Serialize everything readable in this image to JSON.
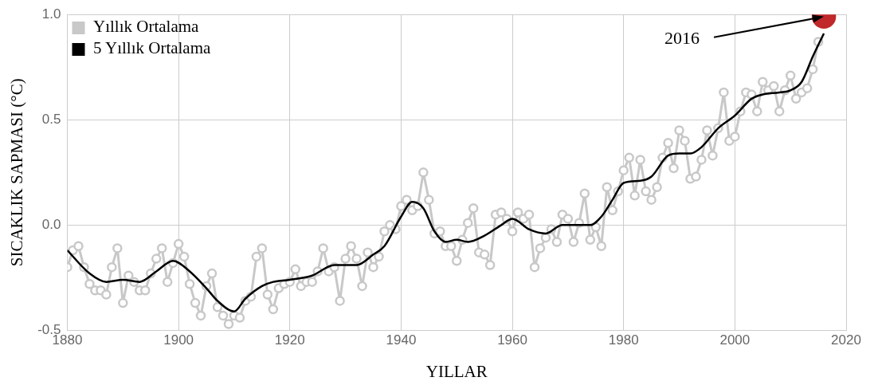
{
  "chart_data": {
    "type": "line",
    "xlabel": "YILLAR",
    "ylabel": "SICAKLIK SAPMASI (°C)",
    "xlim": [
      1880,
      2020
    ],
    "xticks": [
      1880,
      1900,
      1920,
      1940,
      1960,
      1980,
      2000,
      2020
    ],
    "ylim": [
      -0.5,
      1.0
    ],
    "yticks": [
      {
        "value": -0.5,
        "label": "-0.5"
      },
      {
        "value": 0,
        "label": "0.0"
      },
      {
        "value": 0.5,
        "label": "0.5"
      },
      {
        "value": 1,
        "label": "1.0"
      }
    ],
    "grid": true,
    "legend": "top left",
    "line_style": "solid",
    "annotations": [
      {
        "text": "2016",
        "x": 2016,
        "y": 0.99
      }
    ],
    "series": [
      {
        "name": "Yıllık Ortalama",
        "color": "#c8c8c8",
        "marker": "circle",
        "x": [
          1880,
          1881,
          1882,
          1883,
          1884,
          1885,
          1886,
          1887,
          1888,
          1889,
          1890,
          1891,
          1892,
          1893,
          1894,
          1895,
          1896,
          1897,
          1898,
          1899,
          1900,
          1901,
          1902,
          1903,
          1904,
          1905,
          1906,
          1907,
          1908,
          1909,
          1910,
          1911,
          1912,
          1913,
          1914,
          1915,
          1916,
          1917,
          1918,
          1919,
          1920,
          1921,
          1922,
          1923,
          1924,
          1925,
          1926,
          1927,
          1928,
          1929,
          1930,
          1931,
          1932,
          1933,
          1934,
          1935,
          1936,
          1937,
          1938,
          1939,
          1940,
          1941,
          1942,
          1943,
          1944,
          1945,
          1946,
          1947,
          1948,
          1949,
          1950,
          1951,
          1952,
          1953,
          1954,
          1955,
          1956,
          1957,
          1958,
          1959,
          1960,
          1961,
          1962,
          1963,
          1964,
          1965,
          1966,
          1967,
          1968,
          1969,
          1970,
          1971,
          1972,
          1973,
          1974,
          1975,
          1976,
          1977,
          1978,
          1979,
          1980,
          1981,
          1982,
          1983,
          1984,
          1985,
          1986,
          1987,
          1988,
          1989,
          1990,
          1991,
          1992,
          1993,
          1994,
          1995,
          1996,
          1997,
          1998,
          1999,
          2000,
          2001,
          2002,
          2003,
          2004,
          2005,
          2006,
          2007,
          2008,
          2009,
          2010,
          2011,
          2012,
          2013,
          2014,
          2015
        ],
        "values": [
          -0.2,
          -0.12,
          -0.1,
          -0.2,
          -0.28,
          -0.31,
          -0.31,
          -0.33,
          -0.2,
          -0.11,
          -0.37,
          -0.24,
          -0.27,
          -0.31,
          -0.31,
          -0.23,
          -0.16,
          -0.11,
          -0.27,
          -0.18,
          -0.09,
          -0.15,
          -0.28,
          -0.37,
          -0.43,
          -0.29,
          -0.23,
          -0.39,
          -0.43,
          -0.47,
          -0.43,
          -0.44,
          -0.36,
          -0.34,
          -0.15,
          -0.11,
          -0.33,
          -0.4,
          -0.3,
          -0.28,
          -0.27,
          -0.21,
          -0.29,
          -0.27,
          -0.27,
          -0.22,
          -0.11,
          -0.22,
          -0.2,
          -0.36,
          -0.16,
          -0.1,
          -0.16,
          -0.29,
          -0.13,
          -0.2,
          -0.15,
          -0.03,
          0.0,
          -0.02,
          0.09,
          0.12,
          0.07,
          0.09,
          0.25,
          0.12,
          -0.04,
          -0.03,
          -0.1,
          -0.1,
          -0.17,
          -0.07,
          0.01,
          0.08,
          -0.13,
          -0.14,
          -0.19,
          0.05,
          0.06,
          0.03,
          -0.03,
          0.06,
          0.03,
          0.05,
          -0.2,
          -0.11,
          -0.06,
          -0.02,
          -0.08,
          0.05,
          0.03,
          -0.08,
          0.01,
          0.15,
          -0.07,
          -0.01,
          -0.1,
          0.18,
          0.07,
          0.16,
          0.26,
          0.32,
          0.14,
          0.31,
          0.16,
          0.12,
          0.18,
          0.32,
          0.39,
          0.27,
          0.45,
          0.4,
          0.22,
          0.23,
          0.31,
          0.45,
          0.33,
          0.46,
          0.63,
          0.4,
          0.42,
          0.54,
          0.63,
          0.62,
          0.54,
          0.68,
          0.64,
          0.66,
          0.54,
          0.64,
          0.71,
          0.6,
          0.63,
          0.65,
          0.74,
          0.87
        ]
      },
      {
        "name": "5 Yıllık Ortalama",
        "color": "#000000",
        "marker": "none",
        "x": [
          1880,
          1884,
          1887,
          1890,
          1893,
          1896,
          1899,
          1902,
          1905,
          1907,
          1910,
          1912,
          1915,
          1917,
          1920,
          1924,
          1928,
          1932,
          1935,
          1937,
          1940,
          1942,
          1944,
          1946,
          1948,
          1950,
          1952,
          1955,
          1958,
          1960,
          1963,
          1966,
          1969,
          1972,
          1974,
          1976,
          1978,
          1980,
          1983,
          1985,
          1988,
          1990,
          1992,
          1994,
          1997,
          2000,
          2003,
          2005,
          2008,
          2010,
          2012,
          2014,
          2016
        ],
        "values": [
          -0.12,
          -0.23,
          -0.27,
          -0.26,
          -0.27,
          -0.22,
          -0.17,
          -0.22,
          -0.3,
          -0.36,
          -0.41,
          -0.35,
          -0.29,
          -0.27,
          -0.26,
          -0.24,
          -0.19,
          -0.19,
          -0.14,
          -0.1,
          0.04,
          0.11,
          0.08,
          -0.03,
          -0.08,
          -0.07,
          -0.08,
          -0.05,
          0.0,
          0.03,
          -0.02,
          -0.04,
          0.0,
          0.0,
          0.0,
          0.04,
          0.12,
          0.2,
          0.21,
          0.23,
          0.33,
          0.34,
          0.34,
          0.37,
          0.46,
          0.52,
          0.6,
          0.62,
          0.63,
          0.64,
          0.68,
          0.8,
          0.91
        ]
      },
      {
        "type": "scatter",
        "color": "#c0282b",
        "marker": "circle",
        "x": [
          2016
        ],
        "values": [
          0.99
        ]
      }
    ]
  }
}
